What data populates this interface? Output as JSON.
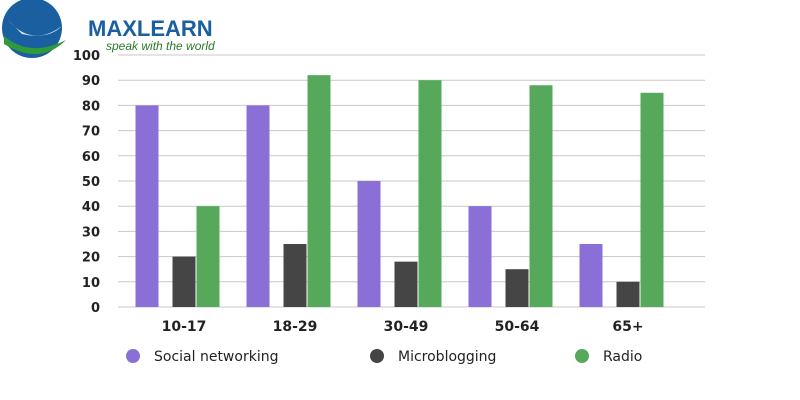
{
  "logo": {
    "name": "MAXLEARN",
    "tagline": "speak with the world"
  },
  "colors": {
    "social": "#8a70d6",
    "micro": "#454545",
    "radio": "#56a95a",
    "grid": "#c8c8c8"
  },
  "chart_data": {
    "type": "bar",
    "categories": [
      "10-17",
      "18-29",
      "30-49",
      "50-64",
      "65+"
    ],
    "series": [
      {
        "name": "Social networking",
        "values": [
          80,
          80,
          50,
          40,
          25
        ]
      },
      {
        "name": "Microblogging",
        "values": [
          20,
          25,
          18,
          15,
          10
        ]
      },
      {
        "name": "Radio",
        "values": [
          40,
          92,
          90,
          88,
          85
        ]
      }
    ],
    "ylim": [
      0,
      100
    ],
    "yticks": [
      "0",
      "10",
      "20",
      "30",
      "40",
      "50",
      "60",
      "70",
      "80",
      "90",
      "100"
    ],
    "grid": true,
    "legend_position": "bottom"
  }
}
